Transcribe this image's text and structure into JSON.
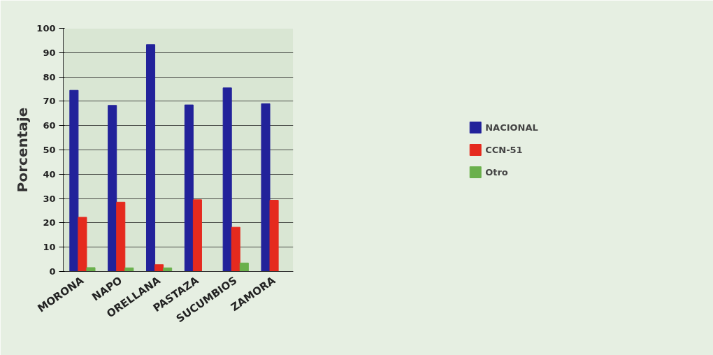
{
  "chart_data": {
    "type": "bar",
    "ylabel": "Porcentaje",
    "categories": [
      "MORONA",
      "NAPO",
      "ORELLANA",
      "PASTAZA",
      "SUCUMBIOS",
      "ZAMORA"
    ],
    "series": [
      {
        "name": "NACIONAL",
        "color": "#22229a",
        "values": [
          74.5,
          68.3,
          93.3,
          68.5,
          75.5,
          69
        ]
      },
      {
        "name": "CCN-51",
        "color": "#e52a1e",
        "values": [
          22.3,
          28.5,
          2.8,
          29.5,
          18.2,
          29.3
        ]
      },
      {
        "name": "Otro",
        "color": "#6ab04c",
        "values": [
          1.6,
          1.5,
          1.5,
          0,
          3.5,
          0
        ]
      }
    ],
    "ylim": [
      0,
      100
    ],
    "yticks": [
      0,
      10,
      20,
      30,
      40,
      50,
      60,
      70,
      80,
      90,
      100
    ],
    "grid": "y",
    "legend": "right"
  }
}
